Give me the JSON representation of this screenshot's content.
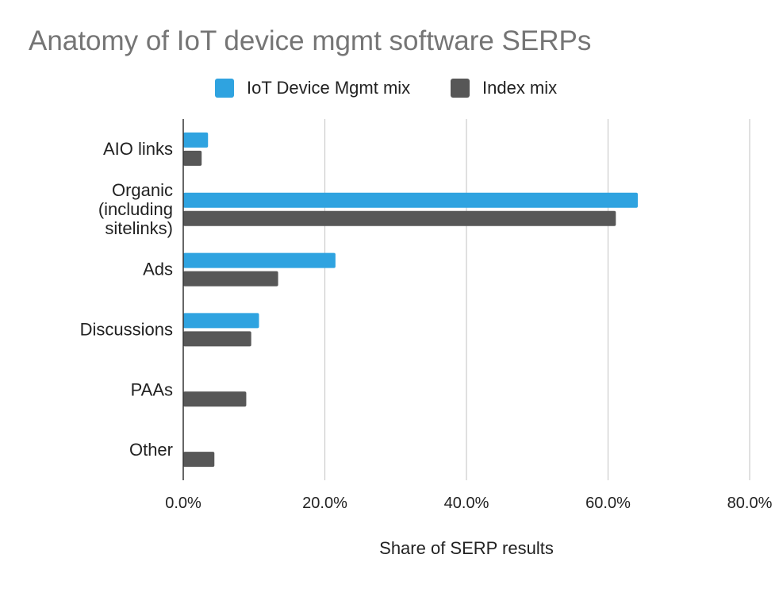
{
  "chart_data": {
    "type": "bar",
    "orientation": "horizontal",
    "title": "Anatomy of IoT device mgmt software SERPs",
    "xlabel": "Share of SERP results",
    "ylabel": "",
    "xlim": [
      0,
      80
    ],
    "x_ticks": [
      "0.0%",
      "20.0%",
      "40.0%",
      "60.0%",
      "80.0%"
    ],
    "x_tick_values": [
      0,
      20,
      40,
      60,
      80
    ],
    "grid": "vertical",
    "legend_position": "top",
    "categories": [
      [
        "AIO links"
      ],
      [
        "Organic",
        "(including",
        "sitelinks)"
      ],
      [
        "Ads"
      ],
      [
        "Discussions"
      ],
      [
        "PAAs"
      ],
      [
        "Other"
      ]
    ],
    "series": [
      {
        "name": "IoT Device Mgmt mix",
        "color": "#2fa3e0",
        "values": [
          3.5,
          64.2,
          21.5,
          10.7,
          0,
          0
        ]
      },
      {
        "name": "Index mix",
        "color": "#575757",
        "values": [
          2.6,
          61.1,
          13.4,
          9.6,
          8.9,
          4.4
        ]
      }
    ]
  }
}
